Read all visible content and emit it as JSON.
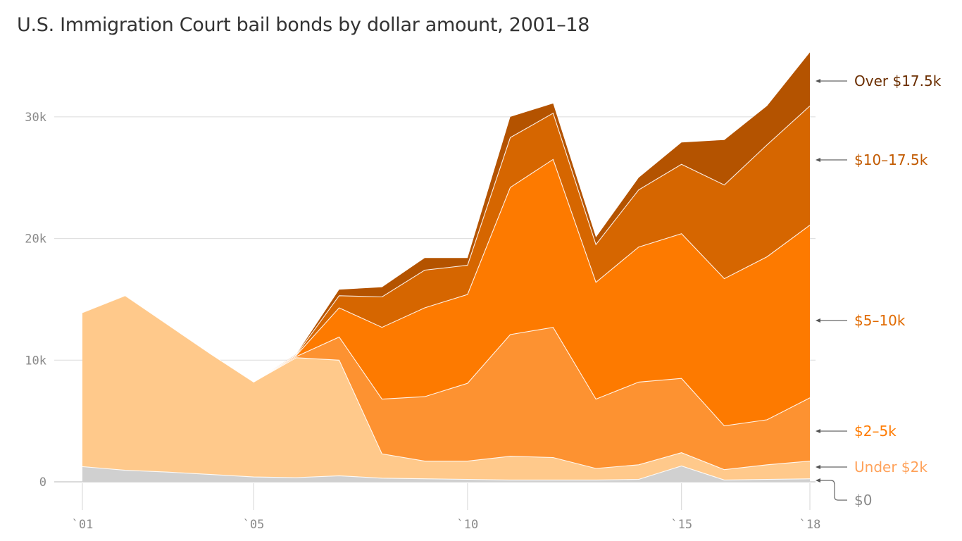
{
  "title": "U.S. Immigration Court bail bonds by dollar amount, 2001–18",
  "chart_data": {
    "type": "area",
    "stacked": true,
    "title": "U.S. Immigration Court bail bonds by dollar amount, 2001–18",
    "xlabel": "",
    "ylabel": "",
    "x": [
      2001,
      2002,
      2003,
      2004,
      2005,
      2006,
      2007,
      2008,
      2009,
      2010,
      2011,
      2012,
      2013,
      2014,
      2015,
      2016,
      2017,
      2018
    ],
    "x_tick_values": [
      2001,
      2005,
      2010,
      2015,
      2018
    ],
    "x_tick_labels": [
      "`01",
      "`05",
      "`10",
      "`15",
      "`18"
    ],
    "y_tick_values": [
      0,
      10000,
      20000,
      30000
    ],
    "y_tick_labels": [
      "0",
      "10k",
      "20k",
      "30k"
    ],
    "ylim": [
      0,
      36000
    ],
    "grid": "horizontal",
    "legend_position": "right (inline labels with arrows)",
    "series": [
      {
        "name": "$0",
        "color": "#d0d0d0",
        "label_color": "#8a8a8a",
        "values": [
          1250,
          950,
          800,
          600,
          400,
          350,
          500,
          300,
          250,
          200,
          150,
          150,
          150,
          200,
          1300,
          150,
          200,
          250
        ]
      },
      {
        "name": "Under $2k",
        "color": "#ffc98b",
        "label_color": "#ffa25a",
        "values": [
          12650,
          14350,
          12100,
          9900,
          7800,
          9850,
          9500,
          2000,
          1450,
          1500,
          1950,
          1850,
          950,
          1200,
          1100,
          850,
          1200,
          1450
        ]
      },
      {
        "name": "$2–5k",
        "color": "#fd9231",
        "label_color": "#ff7b00",
        "values": [
          0,
          0,
          0,
          0,
          0,
          100,
          1900,
          4500,
          5300,
          6400,
          10000,
          10700,
          5700,
          6800,
          6100,
          3600,
          3700,
          5200
        ]
      },
      {
        "name": "$5–10k",
        "color": "#fd7a00",
        "label_color": "#e06a00",
        "values": [
          0,
          0,
          0,
          0,
          0,
          100,
          2400,
          5900,
          7300,
          7300,
          12100,
          13800,
          9600,
          11100,
          11900,
          12100,
          13400,
          14200
        ]
      },
      {
        "name": "$10–17.5k",
        "color": "#d66600",
        "label_color": "#c25a00",
        "values": [
          0,
          0,
          0,
          0,
          0,
          50,
          1000,
          2500,
          3100,
          2400,
          4100,
          3800,
          3100,
          4700,
          5700,
          7700,
          9200,
          9800
        ]
      },
      {
        "name": "Over $17.5k",
        "color": "#b45300",
        "label_color": "#6b2e00",
        "values": [
          0,
          0,
          0,
          0,
          0,
          50,
          500,
          800,
          1000,
          600,
          1700,
          800,
          600,
          1000,
          1800,
          3700,
          3200,
          4400
        ]
      }
    ]
  },
  "legend": [
    {
      "label": "Over $17.5k",
      "color": "#6b2e00"
    },
    {
      "label": "$10–17.5k",
      "color": "#c25a00"
    },
    {
      "label": "$5–10k",
      "color": "#e06a00"
    },
    {
      "label": "$2–5k",
      "color": "#ff7b00"
    },
    {
      "label": "Under $2k",
      "color": "#ffa25a"
    },
    {
      "label": "$0",
      "color": "#8a8a8a"
    }
  ]
}
